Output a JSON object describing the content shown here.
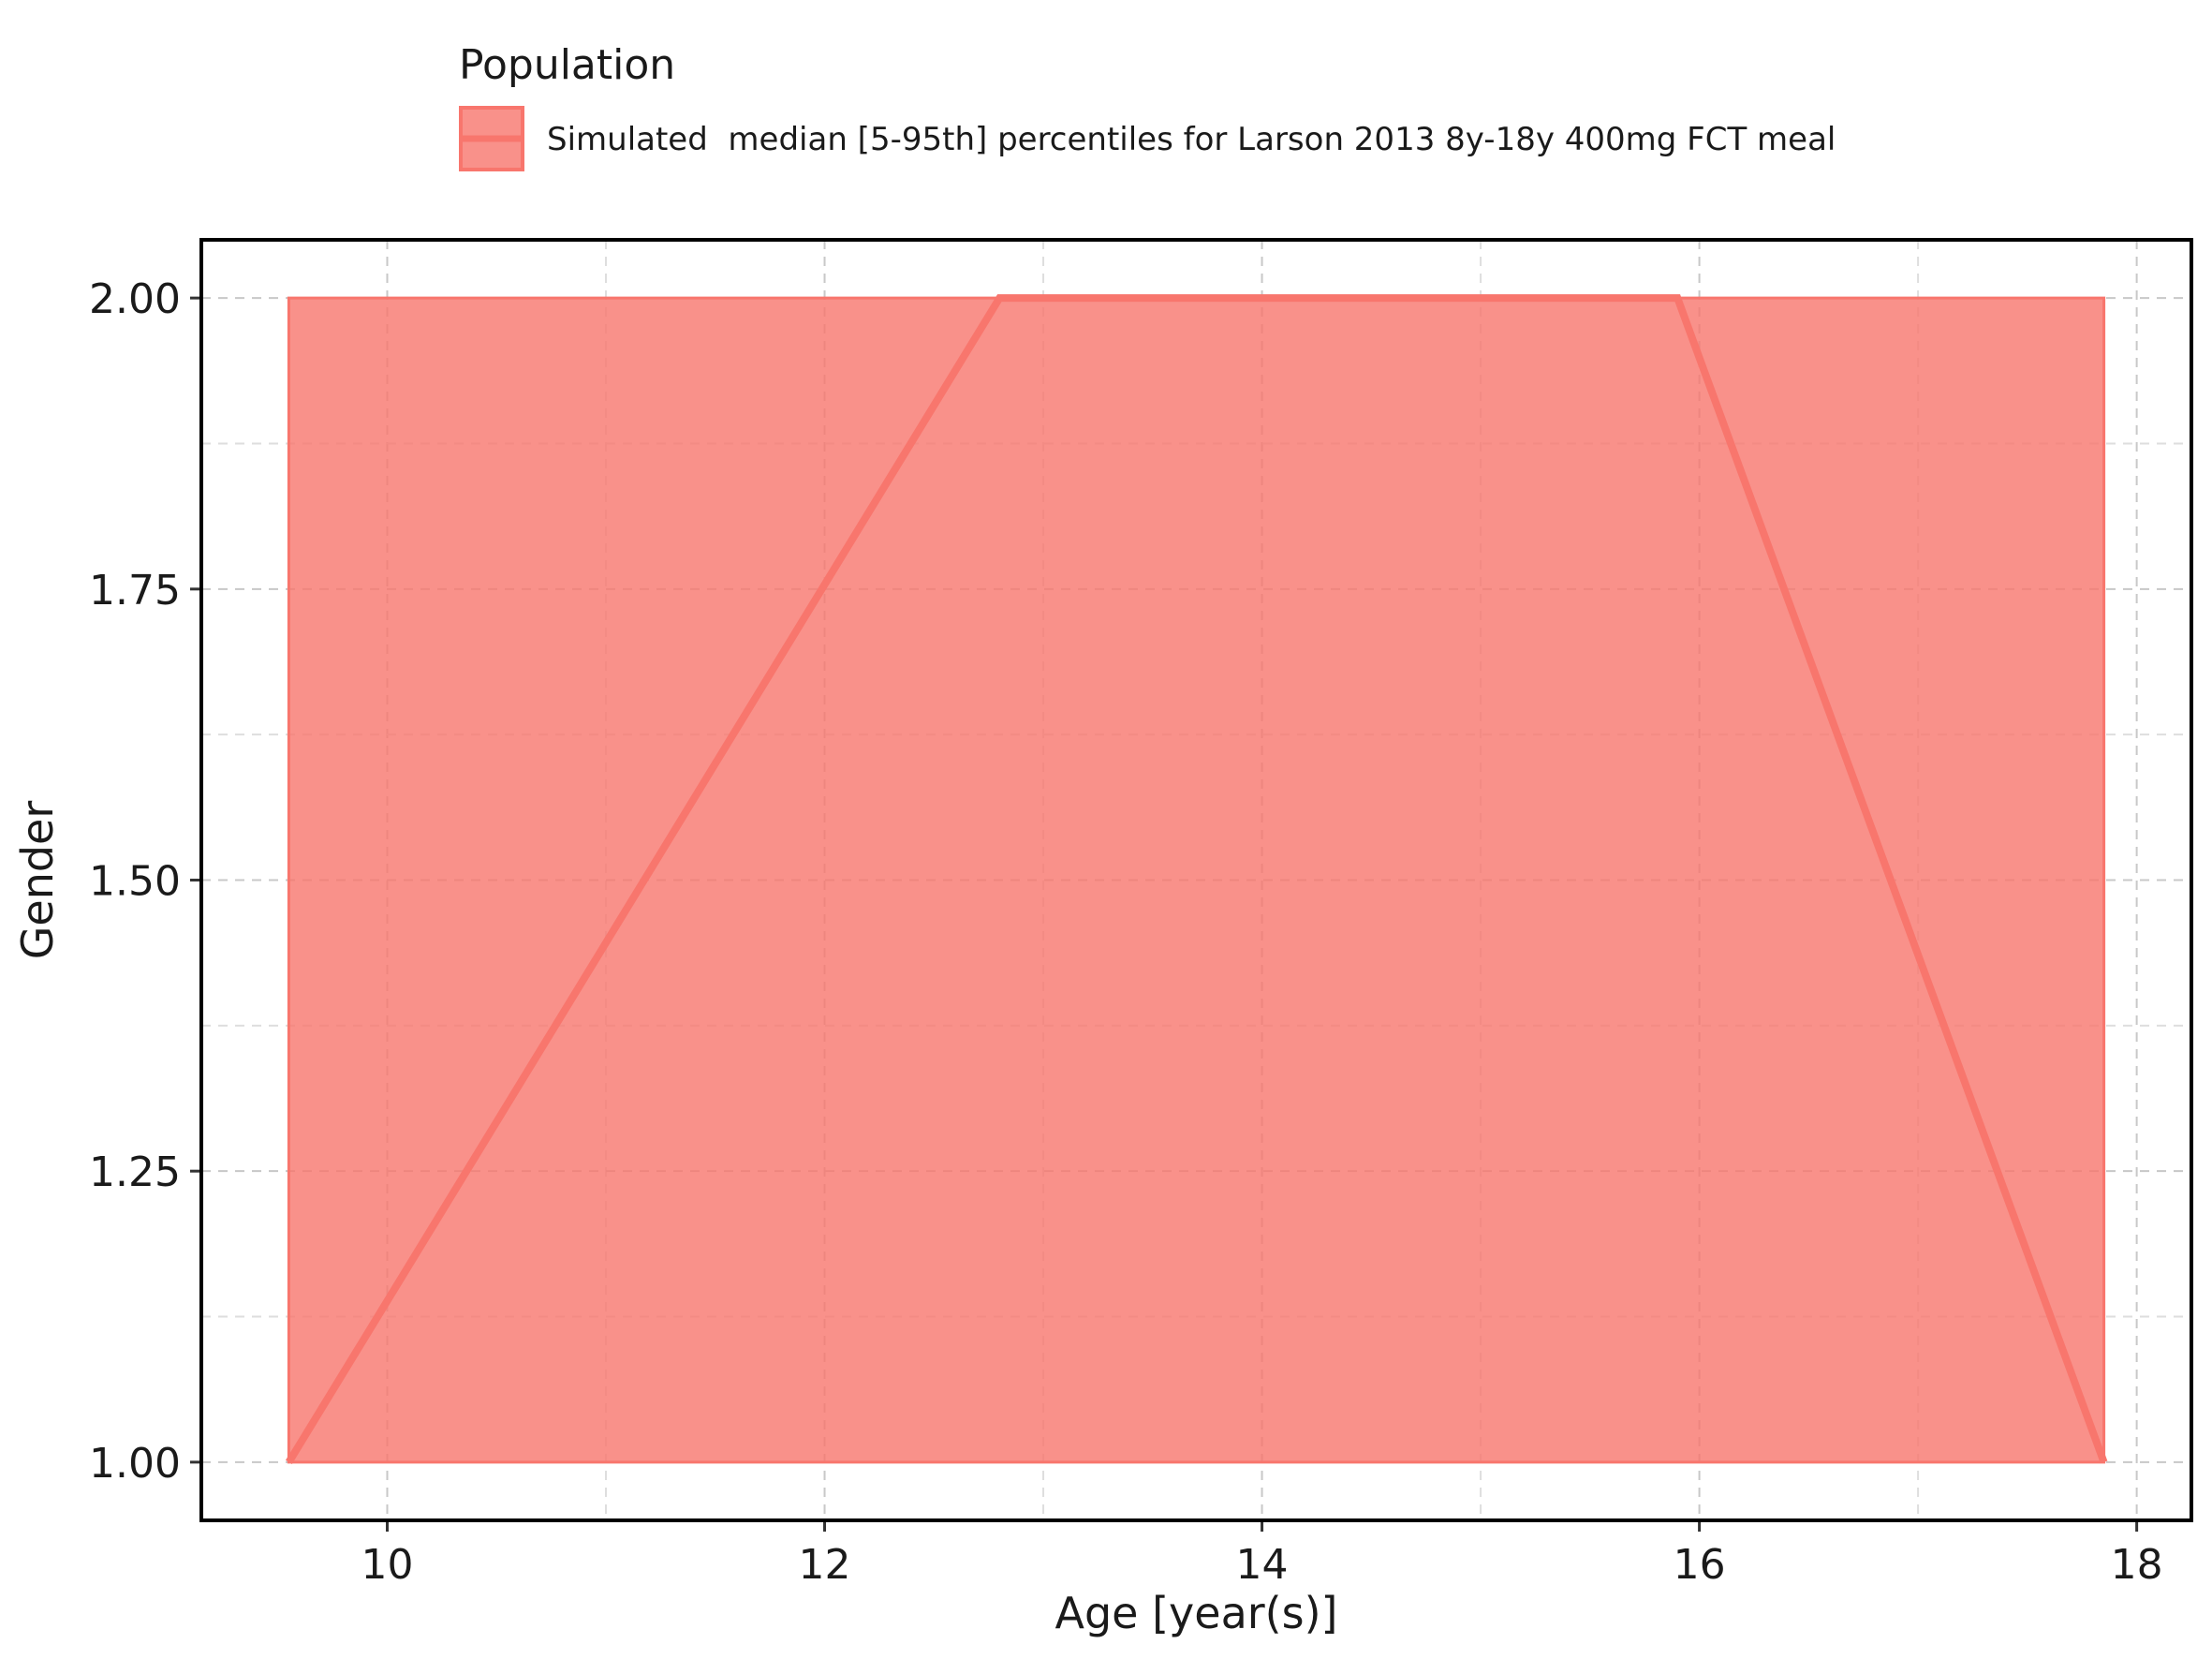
{
  "legend": {
    "title": "Population",
    "entry_label": "Simulated  median [5-95th] percentiles for Larson 2013 8y-18y 400mg FCT meal"
  },
  "chart_data": {
    "type": "area",
    "title": "",
    "xlabel": "Age [year(s)]",
    "ylabel": "Gender",
    "xlim": [
      9.15,
      18.25
    ],
    "ylim": [
      0.95,
      2.05
    ],
    "x_ticks": [
      10,
      12,
      14,
      16,
      18
    ],
    "x_tick_labels": [
      "10",
      "12",
      "14",
      "16",
      "18"
    ],
    "y_ticks": [
      1.0,
      1.25,
      1.5,
      1.75,
      2.0
    ],
    "y_tick_labels": [
      "1.00",
      "1.25",
      "1.50",
      "1.75",
      "2.00"
    ],
    "x_minor_grid": [
      11,
      13,
      15,
      17
    ],
    "y_minor_grid": [
      1.125,
      1.375,
      1.625,
      1.875
    ],
    "grid": true,
    "legend_position": "top-left, outside plot",
    "series": [
      {
        "name": "Simulated  median [5-95th] percentiles for Larson 2013 8y-18y 400mg FCT meal",
        "color": "#F8766D",
        "band": {
          "x": [
            9.55,
            17.85
          ],
          "lower": [
            1.0,
            1.0
          ],
          "upper": [
            2.0,
            2.0
          ]
        },
        "median": {
          "x": [
            9.55,
            12.8,
            15.9,
            17.85
          ],
          "y": [
            1.0,
            2.0,
            2.0,
            1.0
          ]
        }
      }
    ]
  }
}
